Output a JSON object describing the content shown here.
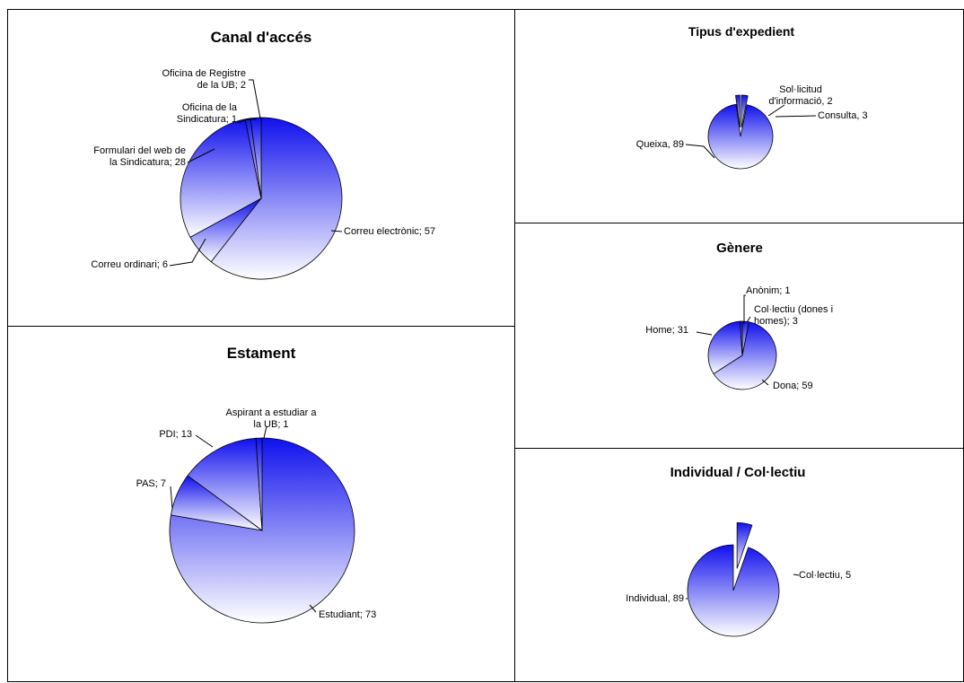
{
  "theme": {
    "gradient_top": "#1010ee",
    "gradient_bottom": "#ffffff",
    "border": "#000000"
  },
  "chart_data": [
    {
      "id": "canal",
      "type": "pie",
      "title": "Canal d'accés",
      "slices": [
        {
          "label": [
            "Correu electrònic; 57"
          ],
          "value": 57
        },
        {
          "label": [
            "Correu ordinari; 6"
          ],
          "value": 6
        },
        {
          "label": [
            "Formulari del web de",
            "la Sindicatura; 28"
          ],
          "value": 28
        },
        {
          "label": [
            "Oficina de la",
            "Sindicatura; 1"
          ],
          "value": 1
        },
        {
          "label": [
            "Oficina de Registre",
            "de la UB; 2"
          ],
          "value": 2
        }
      ]
    },
    {
      "id": "tipus",
      "type": "pie",
      "title": "Tipus d'expedient",
      "slices": [
        {
          "label": [
            "Consulta, 3"
          ],
          "value": 3,
          "exploded": true
        },
        {
          "label": [
            "Queixa, 89"
          ],
          "value": 89
        },
        {
          "label": [
            "Sol·licitud",
            "d'informació, 2"
          ],
          "value": 2,
          "exploded": true
        }
      ]
    },
    {
      "id": "genere",
      "type": "pie",
      "title": "Gènere",
      "slices": [
        {
          "label": [
            "Col·lectiu (dones i",
            "homes); 3"
          ],
          "value": 3
        },
        {
          "label": [
            "Dona; 59"
          ],
          "value": 59
        },
        {
          "label": [
            "Home; 31"
          ],
          "value": 31
        },
        {
          "label": [
            "Anònim; 1"
          ],
          "value": 1
        }
      ]
    },
    {
      "id": "estament",
      "type": "pie",
      "title": "Estament",
      "slices": [
        {
          "label": [
            "Estudiant; 73"
          ],
          "value": 73
        },
        {
          "label": [
            "PAS; 7"
          ],
          "value": 7
        },
        {
          "label": [
            "PDI; 13"
          ],
          "value": 13
        },
        {
          "label": [
            "Aspirant a estudiar a",
            "la UB; 1"
          ],
          "value": 1
        }
      ]
    },
    {
      "id": "individual",
      "type": "pie",
      "title": "Individual / Col·lectiu",
      "slices": [
        {
          "label": [
            "Col·lectiu, 5"
          ],
          "value": 5,
          "exploded": true
        },
        {
          "label": [
            "Individual, 89"
          ],
          "value": 89
        }
      ]
    }
  ]
}
